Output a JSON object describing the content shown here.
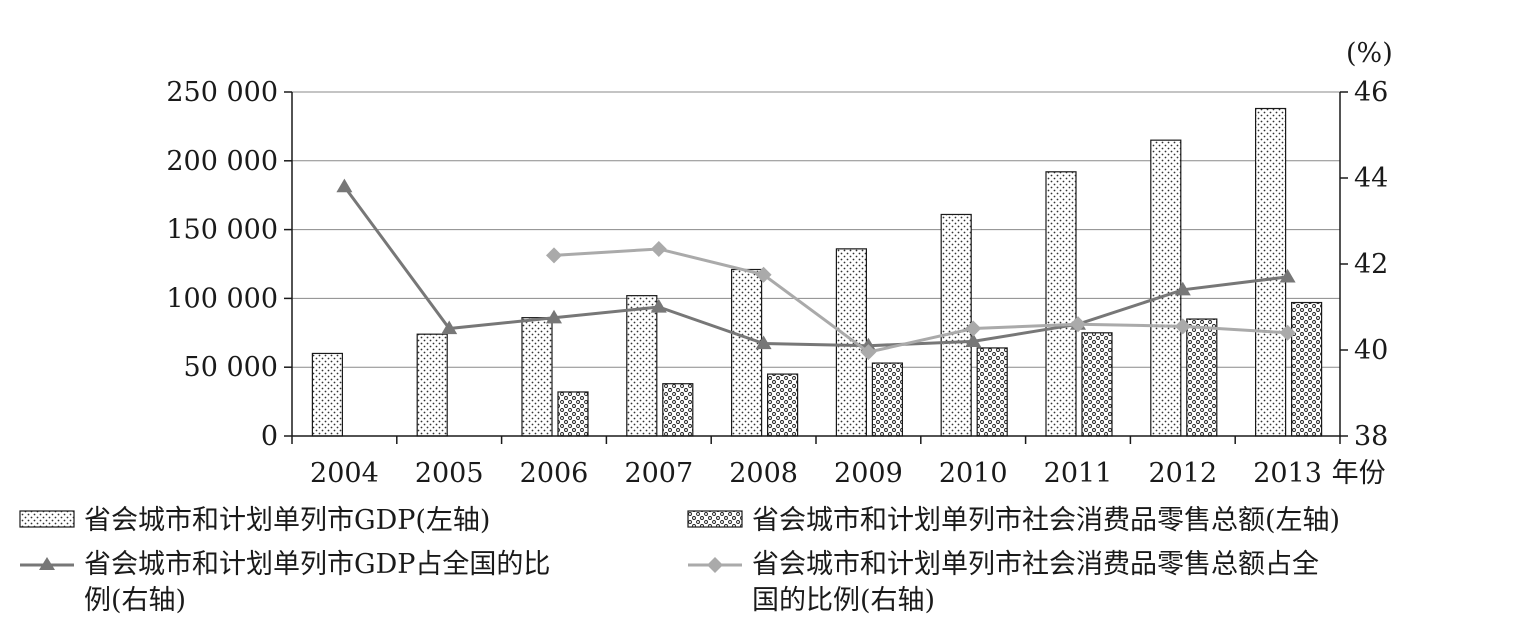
{
  "chart_data": {
    "type": "bar",
    "categories": [
      "2004",
      "2005",
      "2006",
      "2007",
      "2008",
      "2009",
      "2010",
      "2011",
      "2012",
      "2013"
    ],
    "x_unit": "年份",
    "left_axis": {
      "ylim": [
        0,
        250000
      ],
      "ticks": [
        0,
        50000,
        100000,
        150000,
        200000,
        250000
      ],
      "tick_labels": [
        "0",
        "50 000",
        "100 000",
        "150 000",
        "200 000",
        "250 000"
      ]
    },
    "right_axis": {
      "unit": "(%)",
      "ylim": [
        38,
        46
      ],
      "ticks": [
        38,
        40,
        42,
        44,
        46
      ],
      "tick_labels": [
        "38",
        "40",
        "42",
        "44",
        "46"
      ]
    },
    "grid": true,
    "legend_position": "bottom",
    "series": [
      {
        "name": "省会城市和计划单列市GDP(左轴)",
        "type": "bar",
        "axis": "left",
        "pattern": "dotted",
        "values": [
          60000,
          74000,
          86000,
          102000,
          121000,
          136000,
          161000,
          192000,
          215000,
          238000
        ]
      },
      {
        "name": "省会城市和计划单列市社会消费品零售总额(左轴)",
        "type": "bar",
        "axis": "left",
        "pattern": "circles",
        "values": [
          null,
          null,
          32000,
          38000,
          45000,
          53000,
          64000,
          75000,
          85000,
          97000
        ]
      },
      {
        "name_lines": [
          "省会城市和计划单列市GDP占全国的比",
          "例(右轴)"
        ],
        "type": "line",
        "axis": "right",
        "marker": "triangle",
        "color": "#777777",
        "values": [
          43.8,
          40.5,
          40.75,
          41.0,
          40.15,
          40.1,
          40.2,
          40.6,
          41.4,
          41.7
        ]
      },
      {
        "name_lines": [
          "省会城市和计划单列市社会消费品零售总额占全",
          "国的比例(右轴)"
        ],
        "type": "line",
        "axis": "right",
        "marker": "diamond",
        "color": "#aaaaaa",
        "values": [
          null,
          null,
          42.2,
          42.35,
          41.75,
          39.95,
          40.5,
          40.6,
          40.55,
          40.4
        ]
      }
    ]
  }
}
